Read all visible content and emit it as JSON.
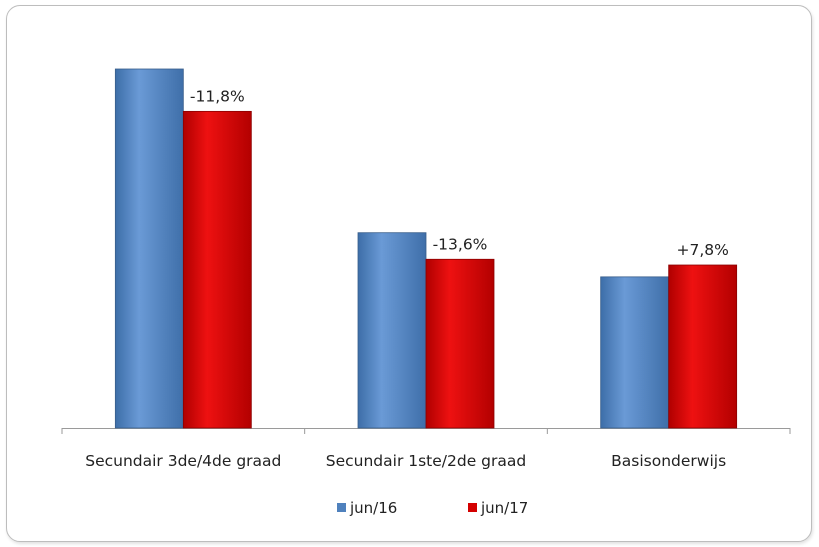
{
  "chart_data": {
    "type": "bar",
    "categories": [
      "Secundair 3de/4de graad",
      "Secundair 1ste/2de graad",
      "Basisonderwijs"
    ],
    "series": [
      {
        "name": "jun/16",
        "color": "#4f81bd",
        "values": [
          100,
          54.4,
          42.1
        ]
      },
      {
        "name": "jun/17",
        "color": "#d40000",
        "values": [
          88.2,
          47.0,
          45.4
        ]
      }
    ],
    "data_labels": [
      "-11,8%",
      "-13,6%",
      "+7,8%"
    ],
    "title": "",
    "xlabel": "",
    "ylabel": "",
    "ylim": [
      0,
      100
    ],
    "y_axis_visible": false,
    "grid": false,
    "legend_position": "bottom"
  }
}
